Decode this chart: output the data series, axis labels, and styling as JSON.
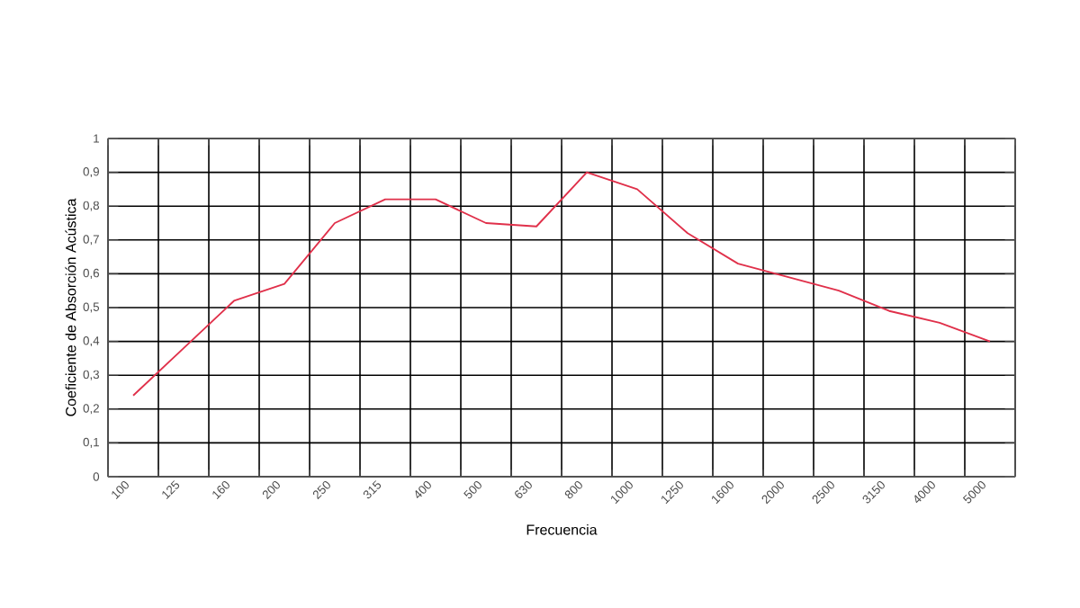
{
  "chart_data": {
    "type": "line",
    "xlabel": "Frecuencia",
    "ylabel": "Coeficiente de Absorción Acústica",
    "categories": [
      "100",
      "125",
      "160",
      "200",
      "250",
      "315",
      "400",
      "500",
      "630",
      "800",
      "1000",
      "1250",
      "1600",
      "2000",
      "2500",
      "3150",
      "4000",
      "5000"
    ],
    "series": [
      {
        "color": "#e0304a",
        "values": [
          0.24,
          0.38,
          0.52,
          0.57,
          0.75,
          0.82,
          0.82,
          0.75,
          0.74,
          0.9,
          0.85,
          0.72,
          0.63,
          0.59,
          0.55,
          0.49,
          0.455,
          0.4
        ]
      }
    ],
    "ylim": [
      0,
      1
    ],
    "yticks": [
      {
        "value": 0,
        "label": "0"
      },
      {
        "value": 0.1,
        "label": "0,1"
      },
      {
        "value": 0.2,
        "label": "0,2"
      },
      {
        "value": 0.3,
        "label": "0,3"
      },
      {
        "value": 0.4,
        "label": "0,4"
      },
      {
        "value": 0.5,
        "label": "0,5"
      },
      {
        "value": 0.6,
        "label": "0,6"
      },
      {
        "value": 0.7,
        "label": "0,7"
      },
      {
        "value": 0.8,
        "label": "0,8"
      },
      {
        "value": 0.9,
        "label": "0,9"
      },
      {
        "value": 1,
        "label": "1"
      }
    ],
    "grid": true,
    "marker": "none",
    "line_style": "solid"
  }
}
